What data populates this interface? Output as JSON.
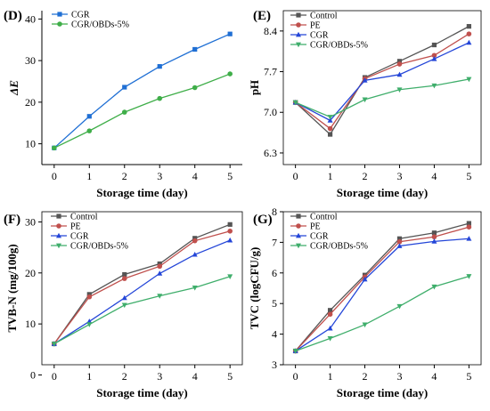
{
  "chart_data": [
    {
      "type": "line",
      "panel_label": "(D)",
      "xlabel": "Storage time (day)",
      "ylabel": "ΔE",
      "x": [
        0,
        1,
        2,
        3,
        4,
        5
      ],
      "xticks": [
        "0",
        "1",
        "2",
        "3",
        "4",
        "5"
      ],
      "ylim": [
        5,
        42
      ],
      "yticks": [
        "10",
        "20",
        "30",
        "40"
      ],
      "ytick_values": [
        10,
        20,
        30,
        40
      ],
      "boxed": false,
      "legend_position": "top-left",
      "series": [
        {
          "name": "CGR",
          "color": "#1f6fd4",
          "marker": "square",
          "values": [
            9.0,
            16.6,
            23.6,
            28.6,
            32.7,
            36.4
          ]
        },
        {
          "name": "CGR/OBDs-5%",
          "color": "#3fae49",
          "marker": "circle",
          "values": [
            9.0,
            13.1,
            17.6,
            20.9,
            23.5,
            26.8
          ]
        }
      ]
    },
    {
      "type": "line",
      "panel_label": "(E)",
      "xlabel": "Storage time (day)",
      "ylabel": "pH",
      "x": [
        0,
        1,
        2,
        3,
        4,
        5
      ],
      "xticks": [
        "0",
        "1",
        "2",
        "3",
        "4",
        "5"
      ],
      "ylim": [
        6.1,
        8.75
      ],
      "yticks": [
        "6.3",
        "7.0",
        "7.7",
        "8.4"
      ],
      "ytick_values": [
        6.3,
        7.0,
        7.7,
        8.4
      ],
      "boxed": true,
      "legend_position": "top-left",
      "series": [
        {
          "name": "Control",
          "color": "#555555",
          "marker": "square",
          "values": [
            7.17,
            6.62,
            7.6,
            7.88,
            8.16,
            8.48
          ]
        },
        {
          "name": "PE",
          "color": "#c0504d",
          "marker": "circle",
          "values": [
            7.17,
            6.72,
            7.58,
            7.83,
            7.98,
            8.35
          ]
        },
        {
          "name": "CGR",
          "color": "#2446d8",
          "marker": "triangle-up",
          "values": [
            7.17,
            6.86,
            7.55,
            7.65,
            7.92,
            8.2
          ]
        },
        {
          "name": "CGR/OBDs-5%",
          "color": "#3fae6b",
          "marker": "triangle-down",
          "values": [
            7.17,
            6.92,
            7.22,
            7.39,
            7.46,
            7.57
          ]
        }
      ]
    },
    {
      "type": "line",
      "panel_label": "(F)",
      "xlabel": "Storage time (day)",
      "ylabel": "TVB-N (mg/100g)",
      "x": [
        0,
        1,
        2,
        3,
        4,
        5
      ],
      "xticks": [
        "0",
        "1",
        "2",
        "3",
        "4",
        "5"
      ],
      "ylim": [
        2,
        32
      ],
      "yticks": [
        "0",
        "10",
        "20",
        "30"
      ],
      "ytick_values": [
        0,
        10,
        20,
        30
      ],
      "boxed": true,
      "legend_position": "top-left",
      "series": [
        {
          "name": "Control",
          "color": "#555555",
          "marker": "square",
          "values": [
            6.1,
            15.8,
            19.7,
            21.8,
            26.8,
            29.5
          ]
        },
        {
          "name": "PE",
          "color": "#c0504d",
          "marker": "circle",
          "values": [
            6.1,
            15.3,
            18.9,
            21.3,
            26.3,
            28.2
          ]
        },
        {
          "name": "CGR",
          "color": "#2446d8",
          "marker": "triangle-up",
          "values": [
            6.1,
            10.5,
            15.1,
            19.9,
            23.6,
            26.4
          ]
        },
        {
          "name": "CGR/OBDs-5%",
          "color": "#3fae6b",
          "marker": "triangle-down",
          "values": [
            6.1,
            9.9,
            13.7,
            15.5,
            17.1,
            19.3
          ]
        }
      ]
    },
    {
      "type": "line",
      "panel_label": "(G)",
      "xlabel": "Storage time (day)",
      "ylabel": "TVC (logCFU/g)",
      "x": [
        0,
        1,
        2,
        3,
        4,
        5
      ],
      "xticks": [
        "0",
        "1",
        "2",
        "3",
        "4",
        "5"
      ],
      "ylim": [
        3,
        8
      ],
      "yticks": [
        "3",
        "4",
        "5",
        "6",
        "7",
        "8"
      ],
      "ytick_values": [
        3,
        4,
        5,
        6,
        7,
        8
      ],
      "boxed": true,
      "legend_position": "top-left",
      "series": [
        {
          "name": "Control",
          "color": "#555555",
          "marker": "square",
          "values": [
            3.45,
            4.78,
            5.93,
            7.12,
            7.31,
            7.62
          ]
        },
        {
          "name": "PE",
          "color": "#c0504d",
          "marker": "circle",
          "values": [
            3.45,
            4.65,
            5.87,
            7.02,
            7.18,
            7.5
          ]
        },
        {
          "name": "CGR",
          "color": "#2446d8",
          "marker": "triangle-up",
          "values": [
            3.45,
            4.19,
            5.79,
            6.88,
            7.03,
            7.12
          ]
        },
        {
          "name": "CGR/OBDs-5%",
          "color": "#3fae6b",
          "marker": "triangle-down",
          "values": [
            3.45,
            3.86,
            4.31,
            4.91,
            5.55,
            5.89
          ]
        }
      ]
    }
  ]
}
